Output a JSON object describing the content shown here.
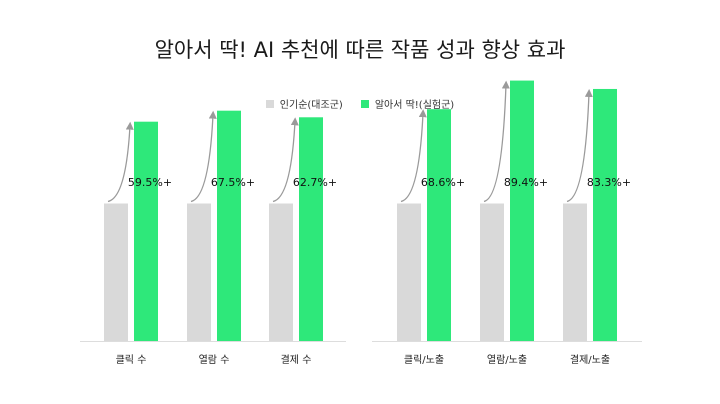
{
  "chart_data": {
    "type": "bar",
    "title": "알아서 딱! AI 추천에 따른 작품 성과 향상 효과",
    "categories": [
      "클릭 수",
      "열람 수",
      "결제 수",
      "클릭/노출",
      "열람/노출",
      "결제/노출"
    ],
    "series": [
      {
        "name": "인기순(대조군)",
        "color": "#d9d9d9",
        "values": [
          100,
          100,
          100,
          100,
          100,
          100
        ]
      },
      {
        "name": "알아서 딱!(실험군)",
        "color": "#2ee87a",
        "values": [
          159.5,
          167.5,
          162.7,
          168.6,
          189.4,
          183.3
        ]
      }
    ],
    "increase_labels": [
      "59.5%+",
      "67.5%+",
      "62.7%+",
      "68.6%+",
      "89.4%+",
      "83.3%+"
    ],
    "ylim": [
      0,
      200
    ],
    "grid": false,
    "legend_position": "top-center",
    "arrow_color": "#9a9a9a",
    "baseline_color": "#dddddd"
  }
}
